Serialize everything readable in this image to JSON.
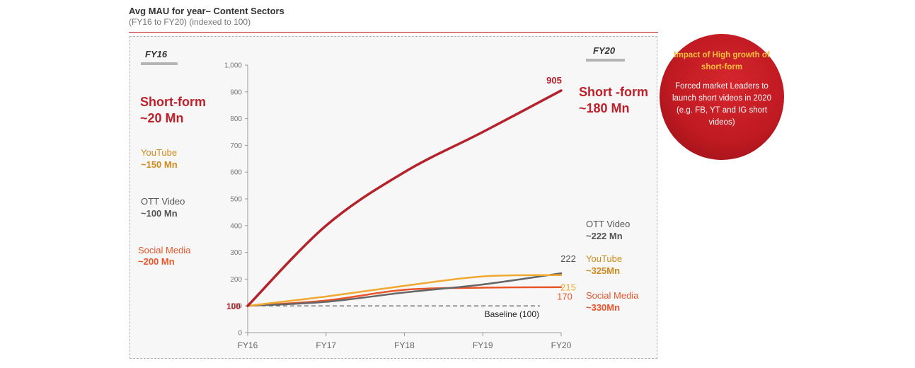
{
  "header": {
    "title": "Avg MAU for year– Content Sectors",
    "subtitle": "(FY16 to FY20) (indexed to 100)"
  },
  "periods": {
    "start": "FY16",
    "end": "FY20"
  },
  "left_labels": {
    "short_form": {
      "name": "Short-form",
      "value": "~20 Mn"
    },
    "youtube": {
      "name": "YouTube",
      "value": "~150 Mn"
    },
    "ott": {
      "name": "OTT Video",
      "value": "~100 Mn"
    },
    "social": {
      "name": "Social Media",
      "value": "~200 Mn"
    }
  },
  "right_labels": {
    "short_form": {
      "name": "Short -form",
      "value": "~180 Mn"
    },
    "ott": {
      "name": "OTT Video",
      "value": "~222 Mn"
    },
    "youtube": {
      "name": "YouTube",
      "value": "~325Mn"
    },
    "social": {
      "name": "Social Media",
      "value": "~330Mn"
    }
  },
  "callout": {
    "heading": "Impact of High growth of short-form",
    "body": "Forced market Leaders to launch short videos in 2020 (e.g. FB, YT and IG short videos)"
  },
  "chart_data": {
    "type": "line",
    "x": [
      "FY16",
      "FY17",
      "FY18",
      "FY19",
      "FY20"
    ],
    "ylim": [
      0,
      1000
    ],
    "yticks": [
      0,
      100,
      200,
      300,
      400,
      500,
      600,
      700,
      800,
      900,
      1000
    ],
    "ytick_labels": [
      "0",
      "100",
      "200",
      "300",
      "400",
      "500",
      "600",
      "700",
      "800",
      "900",
      "1,000"
    ],
    "series": [
      {
        "key": "short_form",
        "values": [
          100,
          400,
          600,
          750,
          905
        ],
        "color": "#b5222b",
        "end_label": "905"
      },
      {
        "key": "youtube",
        "values": [
          100,
          135,
          175,
          210,
          215
        ],
        "color": "#f0a830",
        "end_label": "215"
      },
      {
        "key": "ott",
        "values": [
          100,
          115,
          150,
          180,
          222
        ],
        "color": "#666666",
        "end_label": "222"
      },
      {
        "key": "social",
        "values": [
          100,
          120,
          160,
          168,
          170
        ],
        "color": "#e8562a",
        "end_label": "170"
      }
    ],
    "start_label": "100",
    "baseline": {
      "value": 100,
      "label": "Baseline  (100)"
    },
    "grid": false
  }
}
